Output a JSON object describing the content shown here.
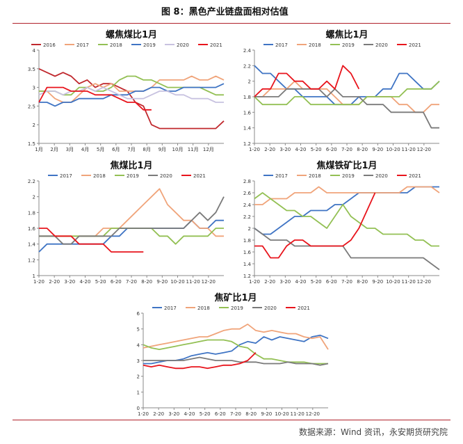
{
  "header": {
    "title": "图 8：黑色产业链盘面相对估值"
  },
  "footer": {
    "source": "数据来源：Wind 资讯，永安期货研究院"
  },
  "colors": {
    "2016": "#c0282d",
    "2017": "#3f74c4",
    "2018": "#f0a47a",
    "2019": "#93c054",
    "2020": "#9a9a9a",
    "2021": "#e8141c",
    "2020_light": "#c8c2e0"
  },
  "chart_data": [
    {
      "id": "c1",
      "type": "line",
      "title": "螺焦煤比1月",
      "ylim": [
        1.5,
        4
      ],
      "yticks": [
        "1.5",
        "2",
        "2.5",
        "3",
        "3.5",
        "4"
      ],
      "xticks": [
        "1月",
        "2月",
        "3月",
        "4月",
        "5月",
        "6月",
        "7月",
        "8月",
        "9月",
        "10月",
        "11月",
        "12月"
      ],
      "series": [
        {
          "name": "2016",
          "color": "#c0282d",
          "values": [
            3.5,
            3.4,
            3.3,
            3.4,
            3.3,
            3.1,
            3.2,
            3.0,
            3.1,
            3.1,
            3.0,
            2.9,
            2.6,
            2.5,
            2.0,
            1.9,
            1.9,
            1.9,
            1.9,
            1.9,
            1.9,
            1.9,
            1.9,
            2.1
          ]
        },
        {
          "name": "2017",
          "color": "#f0a47a",
          "values": [
            2.9,
            2.9,
            2.7,
            2.6,
            2.6,
            2.8,
            3.0,
            3.1,
            3.0,
            3.1,
            2.9,
            2.9,
            2.9,
            2.9,
            3.0,
            3.2,
            3.2,
            3.2,
            3.2,
            3.3,
            3.2,
            3.2,
            3.3,
            3.2
          ]
        },
        {
          "name": "2018",
          "color": "#93c054",
          "values": [
            2.9,
            2.9,
            2.9,
            2.8,
            2.8,
            3.0,
            3.0,
            2.9,
            2.9,
            3.0,
            3.2,
            3.3,
            3.3,
            3.2,
            3.2,
            3.1,
            3.0,
            3.0,
            3.0,
            3.0,
            3.0,
            2.9,
            2.8,
            2.8
          ]
        },
        {
          "name": "2019",
          "color": "#3f74c4",
          "values": [
            2.6,
            2.6,
            2.5,
            2.6,
            2.6,
            2.7,
            2.7,
            2.7,
            2.7,
            2.8,
            2.8,
            2.8,
            2.9,
            2.9,
            3.0,
            3.0,
            2.9,
            2.9,
            3.0,
            3.0,
            3.0,
            3.0,
            3.0,
            3.1
          ]
        },
        {
          "name": "2020",
          "color": "#c8c2e0",
          "values": [
            2.8,
            2.9,
            2.9,
            2.8,
            2.9,
            2.9,
            3.0,
            2.9,
            3.0,
            2.9,
            2.8,
            2.7,
            2.7,
            2.7,
            2.8,
            2.9,
            2.9,
            2.8,
            2.8,
            2.7,
            2.7,
            2.7,
            2.6,
            2.6
          ]
        },
        {
          "name": "2021",
          "color": "#e8141c",
          "values": [
            2.6,
            3.0,
            3.0,
            3.0,
            2.9,
            2.9,
            2.9,
            2.8,
            2.8,
            2.8,
            2.7,
            2.6,
            2.6,
            2.4,
            2.4
          ]
        }
      ]
    },
    {
      "id": "c2",
      "type": "line",
      "title": "螺焦比1月",
      "ylim": [
        1.2,
        2.4
      ],
      "yticks": [
        "1.2",
        "1.4",
        "1.6",
        "1.8",
        "2",
        "2.2",
        "2.4"
      ],
      "xticks": [
        "1-20",
        "2-20",
        "3-20",
        "4-20",
        "5-20",
        "6-20",
        "7-20",
        "8-20",
        "9-20",
        "10-20",
        "11-20",
        "12-20"
      ],
      "series": [
        {
          "name": "2017",
          "color": "#3f74c4",
          "values": [
            2.2,
            2.1,
            2.1,
            2.0,
            1.9,
            1.9,
            1.8,
            1.8,
            1.8,
            1.8,
            1.7,
            1.7,
            1.7,
            1.8,
            1.8,
            1.8,
            1.9,
            1.9,
            2.1,
            2.1,
            2.0,
            1.9,
            1.9,
            2.0
          ]
        },
        {
          "name": "2018",
          "color": "#f0a47a",
          "values": [
            1.8,
            1.8,
            1.9,
            1.9,
            1.9,
            2.0,
            1.9,
            1.9,
            1.9,
            1.9,
            1.8,
            1.7,
            1.7,
            1.7,
            1.8,
            1.8,
            1.8,
            1.8,
            1.7,
            1.7,
            1.6,
            1.6,
            1.7,
            1.7
          ]
        },
        {
          "name": "2019",
          "color": "#93c054",
          "values": [
            1.8,
            1.7,
            1.7,
            1.7,
            1.7,
            1.8,
            1.8,
            1.7,
            1.7,
            1.7,
            1.7,
            1.7,
            1.7,
            1.7,
            1.8,
            1.8,
            1.8,
            1.8,
            1.8,
            1.9,
            1.9,
            1.9,
            1.9,
            2.0
          ]
        },
        {
          "name": "2020",
          "color": "#7a7a7a",
          "values": [
            1.8,
            1.8,
            1.8,
            1.8,
            1.9,
            1.9,
            1.9,
            1.9,
            1.9,
            1.8,
            1.9,
            1.8,
            1.8,
            1.8,
            1.7,
            1.7,
            1.7,
            1.6,
            1.6,
            1.6,
            1.6,
            1.6,
            1.4,
            1.4
          ]
        },
        {
          "name": "2021",
          "color": "#e8141c",
          "values": [
            1.8,
            1.9,
            1.9,
            2.1,
            2.1,
            2.0,
            2.0,
            1.9,
            1.9,
            2.0,
            1.9,
            2.2,
            2.1,
            1.9
          ]
        }
      ]
    },
    {
      "id": "c3",
      "type": "line",
      "title": "焦煤比1月",
      "ylim": [
        1.0,
        2.2
      ],
      "yticks": [
        "1",
        "1.2",
        "1.4",
        "1.6",
        "1.8",
        "2",
        "2.2"
      ],
      "xticks": [
        "1-20",
        "2-20",
        "3-20",
        "4-20",
        "5-20",
        "6-20",
        "7-20",
        "8-20",
        "9-20",
        "10-20",
        "11-20",
        "12-20"
      ],
      "series": [
        {
          "name": "2017",
          "color": "#3f74c4",
          "values": [
            1.3,
            1.4,
            1.4,
            1.4,
            1.4,
            1.4,
            1.4,
            1.4,
            1.4,
            1.5,
            1.5,
            1.6,
            1.6,
            1.6,
            1.6,
            1.6,
            1.6,
            1.6,
            1.6,
            1.7,
            1.6,
            1.6,
            1.7,
            1.7
          ]
        },
        {
          "name": "2018",
          "color": "#f0a47a",
          "values": [
            1.5,
            1.5,
            1.5,
            1.5,
            1.5,
            1.5,
            1.5,
            1.5,
            1.6,
            1.6,
            1.6,
            1.7,
            1.8,
            1.9,
            2.0,
            2.1,
            1.9,
            1.8,
            1.7,
            1.7,
            1.6,
            1.6,
            1.5,
            1.5
          ]
        },
        {
          "name": "2019",
          "color": "#93c054",
          "values": [
            1.5,
            1.5,
            1.5,
            1.5,
            1.5,
            1.5,
            1.5,
            1.5,
            1.5,
            1.6,
            1.6,
            1.6,
            1.6,
            1.6,
            1.6,
            1.5,
            1.5,
            1.4,
            1.5,
            1.5,
            1.5,
            1.5,
            1.6,
            1.6
          ]
        },
        {
          "name": "2020",
          "color": "#7a7a7a",
          "values": [
            1.5,
            1.5,
            1.5,
            1.4,
            1.4,
            1.5,
            1.5,
            1.5,
            1.5,
            1.5,
            1.6,
            1.6,
            1.6,
            1.6,
            1.6,
            1.6,
            1.6,
            1.6,
            1.6,
            1.7,
            1.8,
            1.7,
            1.8,
            2.0
          ]
        },
        {
          "name": "2021",
          "color": "#e8141c",
          "values": [
            1.6,
            1.6,
            1.5,
            1.5,
            1.5,
            1.4,
            1.4,
            1.4,
            1.4,
            1.3,
            1.3,
            1.3,
            1.3,
            1.3
          ]
        }
      ]
    },
    {
      "id": "c4",
      "type": "line",
      "title": "焦煤铁矿比1月",
      "ylim": [
        1.2,
        2.8
      ],
      "yticks": [
        "1.2",
        "1.4",
        "1.6",
        "1.8",
        "2",
        "2.2",
        "2.4",
        "2.6",
        "2.8"
      ],
      "xticks": [
        "1-20",
        "2-20",
        "3-20",
        "4-20",
        "5-20",
        "6-20",
        "7-20",
        "8-20",
        "9-20",
        "10-20",
        "11-20",
        "12-20"
      ],
      "series": [
        {
          "name": "2017",
          "color": "#3f74c4",
          "values": [
            2.0,
            1.9,
            1.9,
            2.0,
            2.1,
            2.2,
            2.2,
            2.3,
            2.3,
            2.3,
            2.4,
            2.4,
            2.5,
            2.6,
            2.6,
            2.6,
            2.6,
            2.6,
            2.6,
            2.6,
            2.7,
            2.7,
            2.7,
            2.7
          ]
        },
        {
          "name": "2018",
          "color": "#f0a47a",
          "values": [
            2.4,
            2.4,
            2.5,
            2.5,
            2.5,
            2.6,
            2.6,
            2.6,
            2.7,
            2.6,
            2.6,
            2.6,
            2.6,
            2.6,
            2.6,
            2.6,
            2.6,
            2.6,
            2.6,
            2.7,
            2.7,
            2.7,
            2.7,
            2.6
          ]
        },
        {
          "name": "2019",
          "color": "#93c054",
          "values": [
            2.5,
            2.6,
            2.5,
            2.4,
            2.3,
            2.3,
            2.2,
            2.2,
            2.1,
            2.0,
            2.2,
            2.4,
            2.2,
            2.1,
            2.0,
            2.0,
            1.9,
            1.9,
            1.9,
            1.9,
            1.8,
            1.8,
            1.7,
            1.7
          ]
        },
        {
          "name": "2020",
          "color": "#7a7a7a",
          "values": [
            2.0,
            1.9,
            1.8,
            1.8,
            1.8,
            1.7,
            1.7,
            1.7,
            1.7,
            1.7,
            1.7,
            1.7,
            1.5,
            1.5,
            1.5,
            1.5,
            1.5,
            1.5,
            1.5,
            1.5,
            1.5,
            1.5,
            1.4,
            1.3
          ]
        },
        {
          "name": "2021",
          "color": "#e8141c",
          "values": [
            1.7,
            1.7,
            1.5,
            1.5,
            1.7,
            1.8,
            1.8,
            1.7,
            1.7,
            1.7,
            1.7,
            1.7,
            1.8,
            2.0,
            2.3,
            2.6
          ]
        }
      ]
    },
    {
      "id": "c5",
      "type": "line",
      "title": "焦矿比1月",
      "ylim": [
        0,
        6
      ],
      "yticks": [
        "0",
        "1",
        "2",
        "3",
        "4",
        "5",
        "6"
      ],
      "xticks": [
        "1-20",
        "2-20",
        "3-20",
        "4-20",
        "5-20",
        "6-20",
        "7-20",
        "8-20",
        "9-20",
        "10-20",
        "11-20",
        "12-20"
      ],
      "series": [
        {
          "name": "2017",
          "color": "#3f74c4",
          "values": [
            2.8,
            2.8,
            2.9,
            3.0,
            3.0,
            3.1,
            3.3,
            3.4,
            3.5,
            3.4,
            3.5,
            3.6,
            4.0,
            4.2,
            4.1,
            4.5,
            4.3,
            4.5,
            4.4,
            4.3,
            4.2,
            4.5,
            4.6,
            4.4
          ]
        },
        {
          "name": "2018",
          "color": "#f0a47a",
          "values": [
            3.8,
            3.9,
            4.0,
            4.1,
            4.2,
            4.3,
            4.4,
            4.5,
            4.5,
            4.7,
            4.9,
            5.0,
            5.0,
            5.3,
            4.9,
            4.8,
            4.9,
            4.8,
            4.7,
            4.7,
            4.5,
            4.4,
            4.5,
            3.7
          ]
        },
        {
          "name": "2019",
          "color": "#93c054",
          "values": [
            4.0,
            3.8,
            3.7,
            3.8,
            3.9,
            4.0,
            4.1,
            4.2,
            4.3,
            4.3,
            4.3,
            4.2,
            3.9,
            3.8,
            3.4,
            3.1,
            3.1,
            3.0,
            2.9,
            2.9,
            2.9,
            2.8,
            2.8,
            2.8
          ]
        },
        {
          "name": "2020",
          "color": "#7a7a7a",
          "values": [
            3.0,
            3.0,
            3.0,
            3.0,
            3.0,
            3.0,
            3.1,
            3.2,
            3.1,
            3.0,
            3.0,
            3.0,
            2.9,
            2.9,
            2.9,
            2.8,
            2.8,
            2.8,
            2.9,
            2.8,
            2.8,
            2.8,
            2.7,
            2.8
          ]
        },
        {
          "name": "2021",
          "color": "#e8141c",
          "values": [
            2.7,
            2.6,
            2.7,
            2.6,
            2.5,
            2.5,
            2.6,
            2.6,
            2.5,
            2.6,
            2.7,
            2.7,
            2.8,
            3.0,
            3.5
          ]
        }
      ]
    }
  ]
}
